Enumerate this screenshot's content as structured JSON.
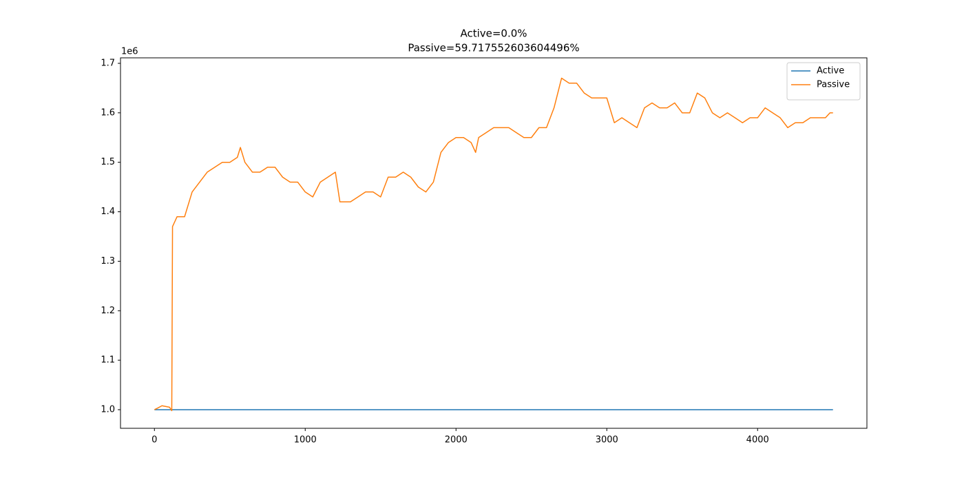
{
  "chart_data": {
    "type": "line",
    "title": [
      "Active=0.0%",
      "Passive=59.717552603604496%"
    ],
    "y_offset_label": "1e6",
    "xlim": [
      -225,
      4725
    ],
    "xticks": [
      0,
      1000,
      2000,
      3000,
      4000
    ],
    "ylim": [
      962400,
      1711100
    ],
    "yticks": [
      {
        "value": 1000000,
        "label": "1.0"
      },
      {
        "value": 1100000,
        "label": "1.1"
      },
      {
        "value": 1200000,
        "label": "1.2"
      },
      {
        "value": 1300000,
        "label": "1.3"
      },
      {
        "value": 1400000,
        "label": "1.4"
      },
      {
        "value": 1500000,
        "label": "1.5"
      },
      {
        "value": 1600000,
        "label": "1.6"
      },
      {
        "value": 1700000,
        "label": "1.7"
      }
    ],
    "grid": false,
    "legend": "upper-right",
    "series": [
      {
        "name": "Active",
        "color": "#1f77b4",
        "x": [
          0,
          4500
        ],
        "values": [
          1000000,
          1000000
        ]
      },
      {
        "name": "Passive",
        "color": "#ff7f0e",
        "x": [
          0,
          20,
          50,
          100,
          115,
          120,
          150,
          200,
          250,
          300,
          350,
          400,
          450,
          500,
          550,
          570,
          600,
          650,
          700,
          750,
          800,
          850,
          900,
          950,
          1000,
          1050,
          1100,
          1150,
          1200,
          1230,
          1300,
          1350,
          1400,
          1450,
          1500,
          1550,
          1600,
          1650,
          1700,
          1750,
          1800,
          1850,
          1900,
          1950,
          2000,
          2050,
          2100,
          2130,
          2150,
          2200,
          2250,
          2300,
          2350,
          2400,
          2450,
          2500,
          2550,
          2600,
          2650,
          2700,
          2750,
          2800,
          2850,
          2900,
          2950,
          3000,
          3050,
          3100,
          3150,
          3200,
          3250,
          3300,
          3350,
          3400,
          3450,
          3500,
          3550,
          3600,
          3650,
          3700,
          3750,
          3800,
          3850,
          3900,
          3950,
          4000,
          4050,
          4100,
          4150,
          4200,
          4250,
          4300,
          4350,
          4400,
          4450,
          4480,
          4500
        ],
        "values": [
          1000000,
          1003000,
          1008000,
          1005000,
          998000,
          1370000,
          1390000,
          1390000,
          1440000,
          1460000,
          1480000,
          1490000,
          1500000,
          1500000,
          1510000,
          1530000,
          1500000,
          1480000,
          1480000,
          1490000,
          1490000,
          1470000,
          1460000,
          1460000,
          1440000,
          1430000,
          1460000,
          1470000,
          1480000,
          1420000,
          1420000,
          1430000,
          1440000,
          1440000,
          1430000,
          1470000,
          1470000,
          1480000,
          1470000,
          1450000,
          1440000,
          1460000,
          1520000,
          1540000,
          1550000,
          1550000,
          1540000,
          1520000,
          1550000,
          1560000,
          1570000,
          1570000,
          1570000,
          1560000,
          1550000,
          1550000,
          1570000,
          1570000,
          1610000,
          1670000,
          1660000,
          1660000,
          1640000,
          1630000,
          1630000,
          1630000,
          1580000,
          1590000,
          1580000,
          1570000,
          1610000,
          1620000,
          1610000,
          1610000,
          1620000,
          1600000,
          1600000,
          1640000,
          1630000,
          1600000,
          1590000,
          1600000,
          1590000,
          1580000,
          1590000,
          1590000,
          1610000,
          1600000,
          1590000,
          1570000,
          1580000,
          1580000,
          1590000,
          1590000,
          1590000,
          1600000,
          1600000
        ]
      }
    ]
  }
}
